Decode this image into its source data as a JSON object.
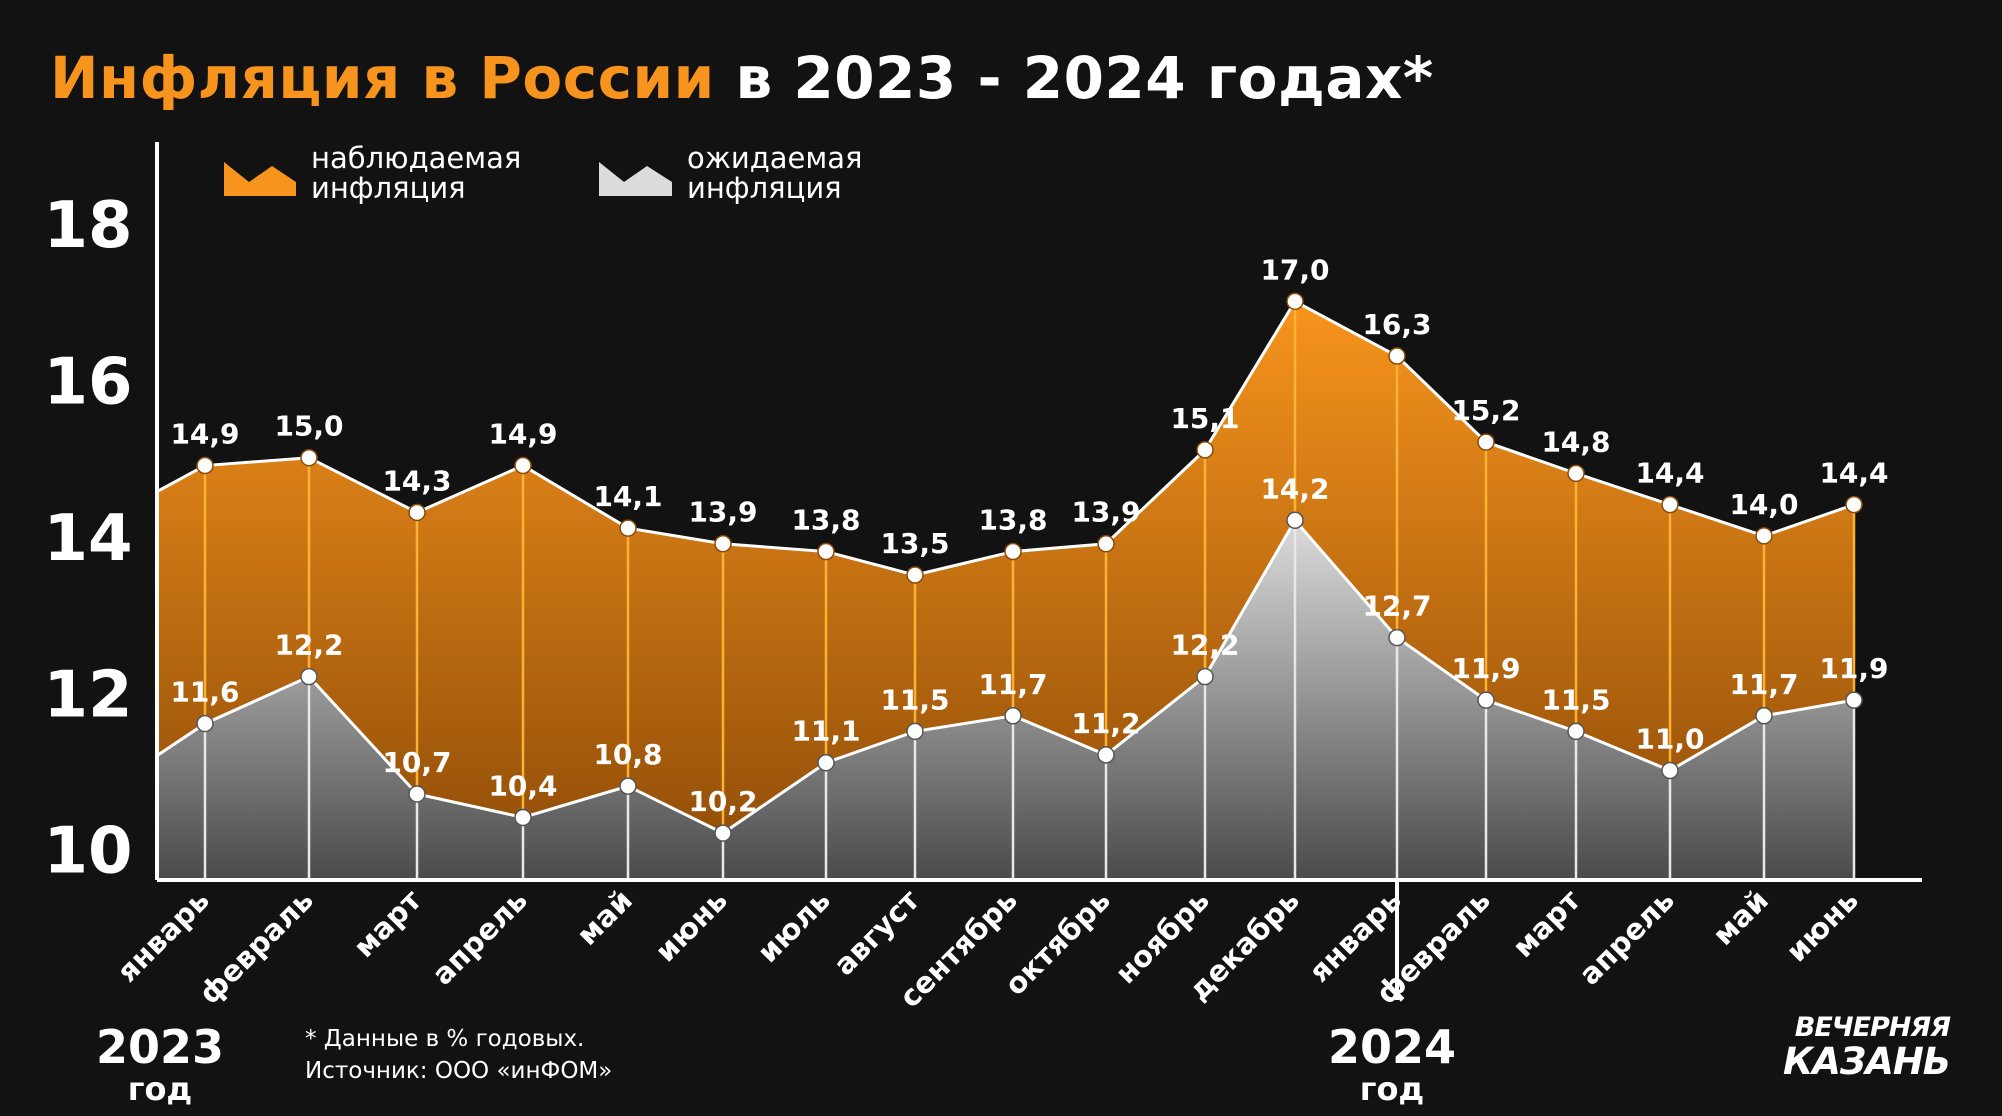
{
  "title": {
    "highlight": "Инфляция в России",
    "rest": " в 2023 - 2024 годах*"
  },
  "legend": {
    "observed": [
      "наблюдаемая",
      "инфляция"
    ],
    "expected": [
      "ожидаемая",
      "инфляция"
    ]
  },
  "years": {
    "y2023": {
      "number": "2023",
      "word": "год"
    },
    "y2024": {
      "number": "2024",
      "word": "год"
    }
  },
  "footnote": {
    "line1": "* Данные в % годовых.",
    "line2": "Источник: ООО «инФОМ»"
  },
  "logo": {
    "line1": "ВЕЧЕРНЯЯ",
    "line2": "КАЗАНЬ"
  },
  "colors": {
    "observed": "#f7941d",
    "observed_dark": "#8c4a07",
    "expected_light": "#dcdcdc",
    "expected_dark": "#4a4a4a",
    "background": "#121212"
  },
  "chart_data": {
    "type": "area",
    "categories": [
      "январь",
      "февраль",
      "март",
      "апрель",
      "май",
      "июнь",
      "июль",
      "август",
      "сентябрь",
      "октябрь",
      "ноябрь",
      "декабрь",
      "январь",
      "февраль",
      "март",
      "апрель",
      "май",
      "июнь"
    ],
    "series": [
      {
        "name": "наблюдаемая инфляция",
        "values": [
          14.9,
          15.0,
          14.3,
          14.9,
          14.1,
          13.9,
          13.8,
          13.5,
          13.8,
          13.9,
          15.1,
          17.0,
          16.3,
          15.2,
          14.8,
          14.4,
          14.0,
          14.4
        ]
      },
      {
        "name": "ожидаемая инфляция",
        "values": [
          11.6,
          12.2,
          10.7,
          10.4,
          10.8,
          10.2,
          11.1,
          11.5,
          11.7,
          11.2,
          12.2,
          14.2,
          12.7,
          11.9,
          11.5,
          11.0,
          11.7,
          11.9
        ]
      }
    ],
    "data_labels": {
      "observed": [
        "14,9",
        "15,0",
        "14,3",
        "14,9",
        "14,1",
        "13,9",
        "13,8",
        "13,5",
        "13,8",
        "13,9",
        "15,1",
        "17,0",
        "16,3",
        "15,2",
        "14,8",
        "14,4",
        "14,0",
        "14,4"
      ],
      "expected": [
        "11,6",
        "12,2",
        "10,7",
        "10,4",
        "10,8",
        "10,2",
        "11,1",
        "11,5",
        "11,7",
        "11,2",
        "12,2",
        "14,2",
        "12,7",
        "11,9",
        "11,5",
        "11,0",
        "11,7",
        "11,9"
      ]
    },
    "yticks": [
      10,
      12,
      14,
      16,
      18
    ],
    "ylim": [
      9.6,
      18.2
    ],
    "grid": false,
    "legend_position": "top-left"
  }
}
